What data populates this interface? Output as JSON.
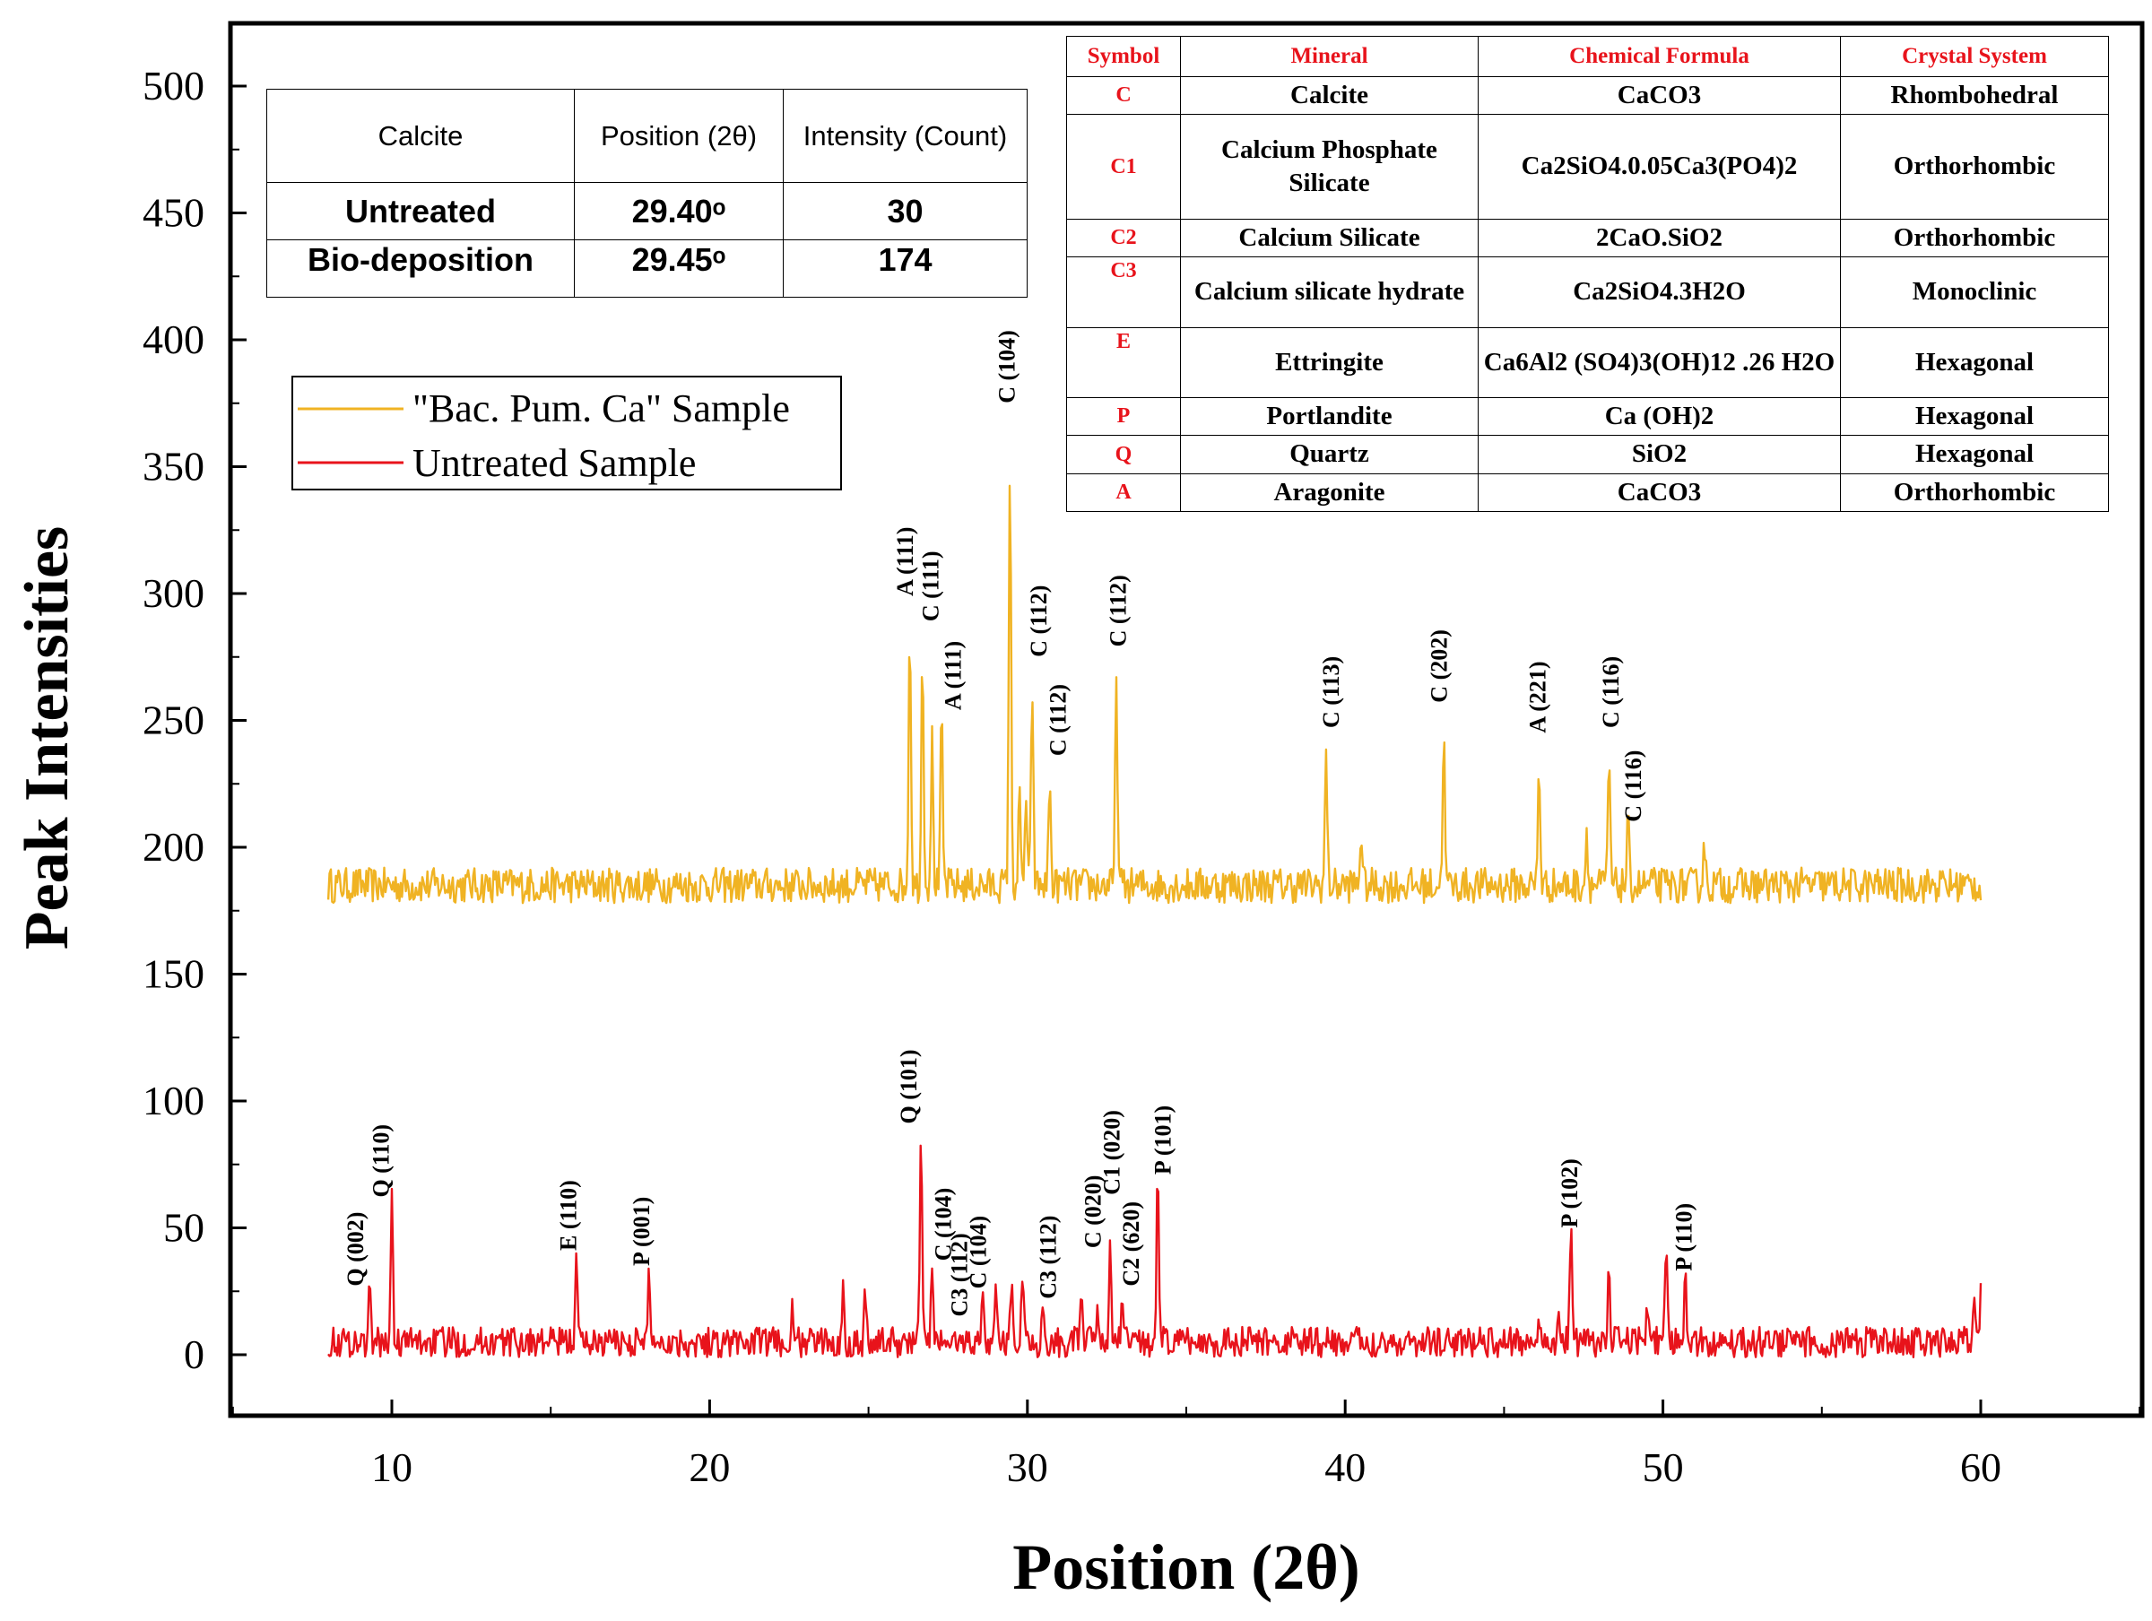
{
  "chart_data": {
    "type": "line",
    "xlabel": "Position (2θ)",
    "ylabel": "Peak Intensities",
    "xlim": [
      5,
      65
    ],
    "ylim": [
      -25,
      525
    ],
    "x_ticks": [
      "10",
      "20",
      "30",
      "40",
      "50",
      "60"
    ],
    "y_ticks": [
      "0",
      "50",
      "100",
      "150",
      "200",
      "250",
      "300",
      "350",
      "400",
      "450",
      "500"
    ],
    "legend_position": "upper-left",
    "series": [
      {
        "name": "\"Bac. Pum. Ca\" Sample",
        "color": "#f0b323",
        "baseline": 185,
        "noise": 7,
        "x_range": [
          8,
          60
        ],
        "peaks": [
          {
            "x": 26.3,
            "y": 290
          },
          {
            "x": 26.7,
            "y": 279
          },
          {
            "x": 27.0,
            "y": 242
          },
          {
            "x": 27.3,
            "y": 252
          },
          {
            "x": 29.45,
            "y": 352
          },
          {
            "x": 29.75,
            "y": 219
          },
          {
            "x": 29.95,
            "y": 219
          },
          {
            "x": 30.15,
            "y": 265
          },
          {
            "x": 30.7,
            "y": 227
          },
          {
            "x": 32.8,
            "y": 269
          },
          {
            "x": 39.4,
            "y": 237
          },
          {
            "x": 40.5,
            "y": 207
          },
          {
            "x": 43.1,
            "y": 245
          },
          {
            "x": 46.1,
            "y": 233
          },
          {
            "x": 47.6,
            "y": 206
          },
          {
            "x": 48.3,
            "y": 235
          },
          {
            "x": 48.9,
            "y": 209
          },
          {
            "x": 51.3,
            "y": 203
          }
        ]
      },
      {
        "name": "Untreated Sample",
        "color": "#e8131b",
        "baseline": 5,
        "noise": 6,
        "x_range": [
          8,
          60
        ],
        "peaks": [
          {
            "x": 9.3,
            "y": 25
          },
          {
            "x": 10.0,
            "y": 60
          },
          {
            "x": 15.8,
            "y": 39
          },
          {
            "x": 18.1,
            "y": 33
          },
          {
            "x": 22.6,
            "y": 16
          },
          {
            "x": 24.2,
            "y": 24
          },
          {
            "x": 24.9,
            "y": 24
          },
          {
            "x": 26.65,
            "y": 89
          },
          {
            "x": 27.0,
            "y": 34
          },
          {
            "x": 28.6,
            "y": 25
          },
          {
            "x": 29.0,
            "y": 27
          },
          {
            "x": 29.5,
            "y": 30
          },
          {
            "x": 29.85,
            "y": 34
          },
          {
            "x": 30.5,
            "y": 20
          },
          {
            "x": 31.7,
            "y": 21
          },
          {
            "x": 32.2,
            "y": 22
          },
          {
            "x": 32.6,
            "y": 40
          },
          {
            "x": 33.0,
            "y": 24
          },
          {
            "x": 34.1,
            "y": 69
          },
          {
            "x": 46.1,
            "y": 17
          },
          {
            "x": 46.7,
            "y": 18
          },
          {
            "x": 47.1,
            "y": 51
          },
          {
            "x": 48.3,
            "y": 31
          },
          {
            "x": 49.5,
            "y": 22
          },
          {
            "x": 50.1,
            "y": 40
          },
          {
            "x": 50.7,
            "y": 31
          },
          {
            "x": 59.8,
            "y": 18
          },
          {
            "x": 60.0,
            "y": 26
          }
        ]
      }
    ],
    "annotations": [
      {
        "text": "A (111)",
        "x": 26.4,
        "y": 299
      },
      {
        "text": "C (111)",
        "x": 27.2,
        "y": 289
      },
      {
        "text": "A (111)",
        "x": 27.9,
        "y": 254
      },
      {
        "text": "C (104)",
        "x": 29.6,
        "y": 375
      },
      {
        "text": "C (112)",
        "x": 30.6,
        "y": 275
      },
      {
        "text": "C (112)",
        "x": 31.2,
        "y": 236
      },
      {
        "text": "C (112)",
        "x": 33.1,
        "y": 279
      },
      {
        "text": "C (113)",
        "x": 39.8,
        "y": 247
      },
      {
        "text": "C (202)",
        "x": 43.2,
        "y": 257
      },
      {
        "text": "A (221)",
        "x": 46.3,
        "y": 245
      },
      {
        "text": "C (116)",
        "x": 48.6,
        "y": 247
      },
      {
        "text": "C (116)",
        "x": 49.3,
        "y": 210
      },
      {
        "text": "Q (002)",
        "x": 9.1,
        "y": 27
      },
      {
        "text": "Q (110)",
        "x": 9.9,
        "y": 62
      },
      {
        "text": "E (110)",
        "x": 15.8,
        "y": 41
      },
      {
        "text": "P (001)",
        "x": 18.1,
        "y": 35
      },
      {
        "text": "Q (101)",
        "x": 26.5,
        "y": 91
      },
      {
        "text": "C (104)",
        "x": 27.6,
        "y": 37
      },
      {
        "text": "C3 (112)",
        "x": 28.1,
        "y": 15
      },
      {
        "text": "C (104)",
        "x": 28.7,
        "y": 26
      },
      {
        "text": "C3 (112)",
        "x": 30.9,
        "y": 22
      },
      {
        "text": "C (020)",
        "x": 32.3,
        "y": 42
      },
      {
        "text": "C1 (020)",
        "x": 32.9,
        "y": 63
      },
      {
        "text": "C2 (620)",
        "x": 33.5,
        "y": 27
      },
      {
        "text": "P (101)",
        "x": 34.5,
        "y": 71
      },
      {
        "text": "P (102)",
        "x": 47.3,
        "y": 50
      },
      {
        "text": "P (110)",
        "x": 50.9,
        "y": 33
      }
    ]
  },
  "calcite_table": {
    "headers": [
      "Calcite",
      "Position (2θ)",
      "Intensity (Count)"
    ],
    "rows": [
      [
        "Untreated",
        "29.40ᵒ",
        "30"
      ],
      [
        "Bio-deposition",
        "29.45ᵒ",
        "174"
      ]
    ]
  },
  "mineral_table": {
    "headers": [
      "Symbol",
      "Mineral",
      "Chemical Formula",
      "Crystal System"
    ],
    "rows": [
      [
        "C",
        "Calcite",
        "CaCO3",
        "Rhombohedral"
      ],
      [
        "C1",
        "Calcium Phosphate Silicate",
        "Ca2SiO4.0.05Ca3(PO4)2",
        "Orthorhombic"
      ],
      [
        "C2",
        "Calcium Silicate",
        "2CaO.SiO2",
        "Orthorhombic"
      ],
      [
        "C3",
        "Calcium silicate hydrate",
        "Ca2SiO4.3H2O",
        "Monoclinic"
      ],
      [
        "E",
        "Ettringite",
        "Ca6Al2 (SO4)3(OH)12 .26 H2O",
        "Hexagonal"
      ],
      [
        "P",
        "Portlandite",
        "Ca (OH)2",
        "Hexagonal"
      ],
      [
        "Q",
        "Quartz",
        "SiO2",
        "Hexagonal"
      ],
      [
        "A",
        "Aragonite",
        "CaCO3",
        "Orthorhombic"
      ]
    ]
  }
}
